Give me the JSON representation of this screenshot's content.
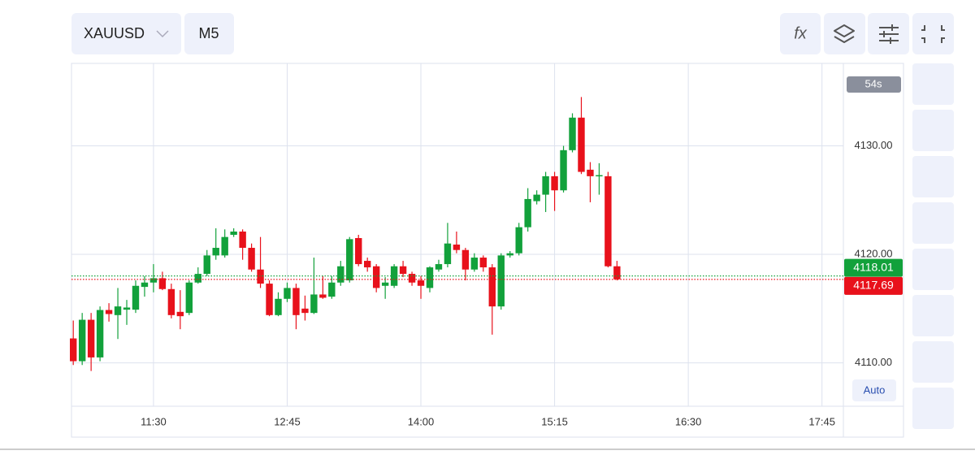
{
  "toolbar": {
    "symbol": "XAUUSD",
    "timeframe": "M5",
    "indicators": "fx"
  },
  "countdown": "54s",
  "scale_mode": "Auto",
  "chart_data": {
    "type": "candlestick",
    "up_color": "#12a13b",
    "down_color": "#e8111b",
    "grid": true,
    "x": [
      "10:45",
      "10:50",
      "10:55",
      "11:00",
      "11:05",
      "11:10",
      "11:15",
      "11:20",
      "11:25",
      "11:30",
      "11:35",
      "11:40",
      "11:45",
      "11:50",
      "11:55",
      "12:00",
      "12:05",
      "12:10",
      "12:15",
      "12:20",
      "12:25",
      "12:30",
      "12:35",
      "12:40",
      "12:45",
      "12:50",
      "12:55",
      "13:00",
      "13:05",
      "13:10",
      "13:15",
      "13:20",
      "13:25",
      "13:30",
      "13:35",
      "13:40",
      "13:45",
      "13:50",
      "13:55",
      "14:00",
      "14:05",
      "14:10",
      "14:15",
      "14:20",
      "14:25",
      "14:30",
      "14:35",
      "14:40",
      "14:45",
      "14:50",
      "14:55",
      "15:00",
      "15:05",
      "15:10",
      "15:15",
      "15:20",
      "15:25",
      "15:30",
      "15:35",
      "15:40",
      "15:45",
      "15:50"
    ],
    "open": [
      4112.25,
      4110.15,
      4113.97,
      4110.5,
      4114.87,
      4114.4,
      4114.9,
      4114.9,
      4117.0,
      4117.4,
      4117.8,
      4116.8,
      4114.7,
      4114.6,
      4117.4,
      4118.2,
      4119.9,
      4119.9,
      4121.8,
      4122.1,
      4120.6,
      4118.6,
      4117.3,
      4114.4,
      4115.9,
      4116.9,
      4115.0,
      4114.6,
      4116.3,
      4116.1,
      4117.4,
      4117.6,
      4121.5,
      4119.4,
      4118.9,
      4117.1,
      4117.1,
      4118.9,
      4118.2,
      4117.6,
      4116.9,
      4118.6,
      4119.1,
      4120.9,
      4120.4,
      4118.6,
      4119.7,
      4118.8,
      4115.2,
      4119.9,
      4120.1,
      4122.5,
      4124.9,
      4125.5,
      4127.2,
      4125.9,
      4129.6,
      4132.6,
      4127.8,
      4127.2,
      4127.2,
      4118.9
    ],
    "high": [
      4113.9,
      4114.6,
      4114.6,
      4115.2,
      4115.5,
      4116.9,
      4115.8,
      4117.6,
      4118.0,
      4119.1,
      4118.4,
      4117.3,
      4116.7,
      4117.6,
      4118.8,
      4120.4,
      4122.4,
      4122.3,
      4122.4,
      4122.3,
      4121.0,
      4121.6,
      4117.6,
      4116.5,
      4117.4,
      4117.3,
      4116.2,
      4119.7,
      4118.0,
      4118.0,
      4119.4,
      4121.6,
      4121.8,
      4119.7,
      4119.1,
      4117.9,
      4119.1,
      4119.4,
      4118.4,
      4118.0,
      4118.9,
      4119.5,
      4122.9,
      4122.1,
      4120.6,
      4120.1,
      4119.9,
      4119.1,
      4120.1,
      4120.3,
      4122.9,
      4126.1,
      4125.9,
      4127.6,
      4127.6,
      4130.0,
      4133.0,
      4134.5,
      4128.5,
      4128.4,
      4127.6,
      4119.4
    ],
    "low": [
      4109.8,
      4109.8,
      4109.25,
      4110.15,
      4113.8,
      4112.2,
      4113.5,
      4114.6,
      4116.1,
      4116.5,
      4116.7,
      4114.1,
      4113.1,
      4114.4,
      4117.3,
      4118.0,
      4119.5,
      4119.7,
      4121.6,
      4119.5,
      4118.4,
      4116.9,
      4114.3,
      4114.3,
      4115.6,
      4113.1,
      4113.9,
      4114.5,
      4115.9,
      4115.9,
      4117.1,
      4117.4,
      4118.9,
      4118.4,
      4116.5,
      4115.9,
      4116.9,
      4117.9,
      4117.1,
      4115.9,
      4116.5,
      4118.4,
      4118.8,
      4120.1,
      4117.6,
      4118.4,
      4118.4,
      4112.6,
      4114.9,
      4119.7,
      4119.9,
      4122.1,
      4124.6,
      4123.9,
      4124.0,
      4125.7,
      4129.4,
      4127.4,
      4124.8,
      4125.5,
      4118.8,
      4117.6
    ],
    "close": [
      4110.15,
      4113.97,
      4110.5,
      4114.87,
      4114.5,
      4115.2,
      4115.1,
      4117.1,
      4117.4,
      4117.8,
      4116.8,
      4114.4,
      4114.3,
      4117.4,
      4118.2,
      4119.9,
      4120.6,
      4121.6,
      4122.1,
      4120.6,
      4118.6,
      4117.3,
      4114.4,
      4115.9,
      4116.9,
      4114.4,
      4114.6,
      4116.3,
      4116.0,
      4117.4,
      4118.9,
      4121.4,
      4119.1,
      4118.8,
      4116.9,
      4117.4,
      4118.9,
      4118.2,
      4117.4,
      4117.1,
      4118.8,
      4119.1,
      4121.0,
      4120.4,
      4118.6,
      4119.7,
      4118.8,
      4115.2,
      4119.9,
      4120.1,
      4122.5,
      4125.1,
      4125.5,
      4127.2,
      4125.9,
      4129.6,
      4132.6,
      4127.6,
      4127.2,
      4127.3,
      4118.9,
      4117.7
    ],
    "xlim": [
      "10:44",
      "17:57"
    ],
    "xticks": [
      "11:30",
      "12:45",
      "14:00",
      "15:15",
      "16:30",
      "17:45"
    ],
    "ylim": [
      4106,
      4137.6
    ],
    "yticks": [
      {
        "value": 4110,
        "label": "4110.00"
      },
      {
        "value": 4120,
        "label": "4120.00"
      },
      {
        "value": 4130,
        "label": "4130.00"
      }
    ],
    "price_lines": [
      {
        "value": 4118.01,
        "color": "#12a13b"
      },
      {
        "value": 4117.69,
        "color": "#e8111b"
      }
    ]
  }
}
